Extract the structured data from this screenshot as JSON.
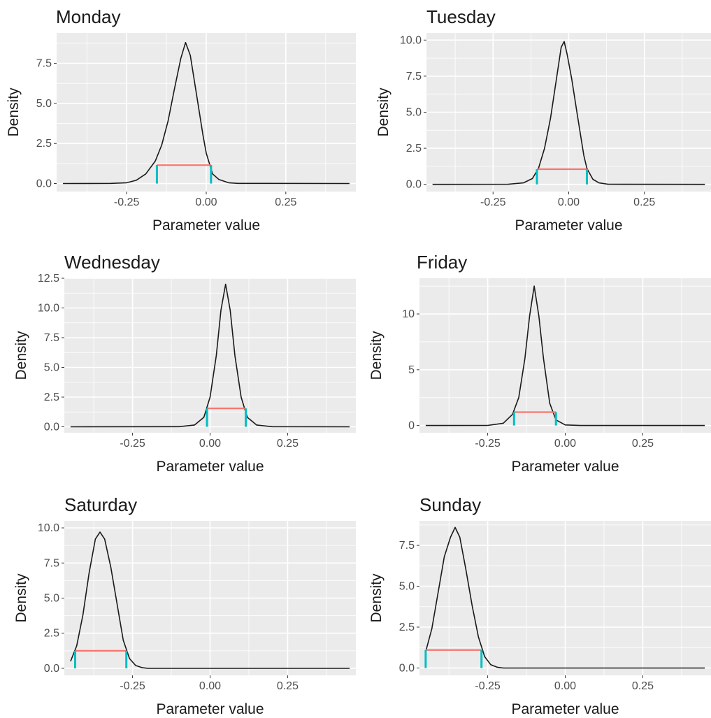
{
  "chart_data": [
    {
      "type": "line",
      "title": "Monday",
      "xlabel": "Parameter value",
      "ylabel": "Density",
      "xlim": [
        -0.47,
        0.47
      ],
      "ylim": [
        -0.5,
        9.4
      ],
      "x_ticks": [
        -0.25,
        0.0,
        0.25
      ],
      "x_tick_labels": [
        "-0.25",
        "0.00",
        "0.25"
      ],
      "y_ticks": [
        0.0,
        2.5,
        5.0,
        7.5
      ],
      "y_tick_labels": [
        "0.0",
        "2.5",
        "5.0",
        "7.5"
      ],
      "grid": true,
      "density": {
        "x": [
          -0.45,
          -0.3,
          -0.25,
          -0.22,
          -0.19,
          -0.16,
          -0.14,
          -0.12,
          -0.1,
          -0.08,
          -0.065,
          -0.05,
          -0.03,
          -0.01,
          0.0,
          0.02,
          0.04,
          0.07,
          0.1,
          0.45
        ],
        "y": [
          0,
          0.01,
          0.05,
          0.2,
          0.6,
          1.4,
          2.4,
          3.9,
          5.9,
          7.8,
          8.8,
          8.0,
          5.5,
          3.0,
          1.9,
          0.6,
          0.25,
          0.05,
          0.01,
          0
        ]
      },
      "interval": {
        "lower": -0.155,
        "upper": 0.015,
        "height": 1.15
      }
    },
    {
      "type": "line",
      "title": "Tuesday",
      "xlabel": "Parameter value",
      "ylabel": "Density",
      "xlim": [
        -0.47,
        0.47
      ],
      "ylim": [
        -0.5,
        10.5
      ],
      "x_ticks": [
        -0.25,
        0.0,
        0.25
      ],
      "x_tick_labels": [
        "-0.25",
        "0.00",
        "0.25"
      ],
      "y_ticks": [
        0.0,
        2.5,
        5.0,
        7.5,
        10.0
      ],
      "y_tick_labels": [
        "0.0",
        "2.5",
        "5.0",
        "7.5",
        "10.0"
      ],
      "grid": true,
      "density": {
        "x": [
          -0.45,
          -0.2,
          -0.15,
          -0.12,
          -0.1,
          -0.08,
          -0.06,
          -0.04,
          -0.025,
          -0.015,
          -0.005,
          0.01,
          0.03,
          0.05,
          0.06,
          0.08,
          0.1,
          0.13,
          0.45
        ],
        "y": [
          0,
          0.01,
          0.1,
          0.4,
          1.1,
          2.5,
          4.6,
          7.4,
          9.5,
          9.9,
          9.0,
          7.3,
          4.6,
          2.0,
          1.1,
          0.35,
          0.1,
          0.01,
          0
        ]
      },
      "interval": {
        "lower": -0.105,
        "upper": 0.06,
        "height": 1.05
      }
    },
    {
      "type": "line",
      "title": "Wednesday",
      "xlabel": "Parameter value",
      "ylabel": "Density",
      "xlim": [
        -0.47,
        0.47
      ],
      "ylim": [
        -0.5,
        12.5
      ],
      "x_ticks": [
        -0.25,
        0.0,
        0.25
      ],
      "x_tick_labels": [
        "-0.25",
        "0.00",
        "0.25"
      ],
      "y_ticks": [
        0.0,
        2.5,
        5.0,
        7.5,
        10.0,
        12.5
      ],
      "y_tick_labels": [
        "0.0",
        "2.5",
        "5.0",
        "7.5",
        "10.0",
        "12.5"
      ],
      "grid": true,
      "density": {
        "x": [
          -0.45,
          -0.1,
          -0.05,
          -0.02,
          0.0,
          0.02,
          0.035,
          0.05,
          0.065,
          0.08,
          0.1,
          0.12,
          0.15,
          0.2,
          0.45
        ],
        "y": [
          0,
          0.01,
          0.15,
          0.8,
          2.5,
          6.0,
          9.8,
          12.0,
          9.8,
          6.0,
          2.5,
          0.8,
          0.15,
          0.01,
          0
        ]
      },
      "interval": {
        "lower": -0.01,
        "upper": 0.115,
        "height": 1.55
      }
    },
    {
      "type": "line",
      "title": "Friday",
      "xlabel": "Parameter value",
      "ylabel": "Density",
      "xlim": [
        -0.47,
        0.47
      ],
      "ylim": [
        -0.65,
        13.2
      ],
      "x_ticks": [
        -0.25,
        0.0,
        0.25
      ],
      "x_tick_labels": [
        "-0.25",
        "0.00",
        "0.25"
      ],
      "y_ticks": [
        0,
        5,
        10
      ],
      "y_tick_labels": [
        "0",
        "5",
        "10"
      ],
      "grid": true,
      "density": {
        "x": [
          -0.45,
          -0.25,
          -0.2,
          -0.17,
          -0.15,
          -0.13,
          -0.115,
          -0.1,
          -0.085,
          -0.07,
          -0.05,
          -0.03,
          0.0,
          0.05,
          0.45
        ],
        "y": [
          0,
          0.01,
          0.2,
          1.0,
          2.5,
          6.0,
          9.8,
          12.5,
          9.8,
          6.0,
          2.0,
          0.5,
          0.05,
          0,
          0
        ]
      },
      "interval": {
        "lower": -0.165,
        "upper": -0.03,
        "height": 1.2
      }
    },
    {
      "type": "line",
      "title": "Saturday",
      "xlabel": "Parameter value",
      "ylabel": "Density",
      "xlim": [
        -0.47,
        0.47
      ],
      "ylim": [
        -0.5,
        10.5
      ],
      "x_ticks": [
        -0.25,
        0.0,
        0.25
      ],
      "x_tick_labels": [
        "-0.25",
        "0.00",
        "0.25"
      ],
      "y_ticks": [
        0.0,
        2.5,
        5.0,
        7.5,
        10.0
      ],
      "y_tick_labels": [
        "0.0",
        "2.5",
        "5.0",
        "7.5",
        "10.0"
      ],
      "grid": true,
      "density": {
        "x": [
          -0.45,
          -0.43,
          -0.41,
          -0.39,
          -0.37,
          -0.355,
          -0.34,
          -0.32,
          -0.3,
          -0.28,
          -0.26,
          -0.24,
          -0.22,
          -0.2,
          0.45
        ],
        "y": [
          0.5,
          1.6,
          3.8,
          6.8,
          9.2,
          9.7,
          9.2,
          7.2,
          4.6,
          2.0,
          0.7,
          0.2,
          0.05,
          0,
          0
        ]
      },
      "interval": {
        "lower": -0.435,
        "upper": -0.27,
        "height": 1.25
      }
    },
    {
      "type": "line",
      "title": "Sunday",
      "xlabel": "Parameter value",
      "ylabel": "Density",
      "xlim": [
        -0.47,
        0.47
      ],
      "ylim": [
        -0.45,
        9.0
      ],
      "x_ticks": [
        -0.25,
        0.0,
        0.25
      ],
      "x_tick_labels": [
        "-0.25",
        "0.00",
        "0.25"
      ],
      "y_ticks": [
        0.0,
        2.5,
        5.0,
        7.5
      ],
      "y_tick_labels": [
        "0.0",
        "2.5",
        "5.0",
        "7.5"
      ],
      "grid": true,
      "density": {
        "x": [
          -0.45,
          -0.43,
          -0.41,
          -0.39,
          -0.37,
          -0.355,
          -0.34,
          -0.32,
          -0.3,
          -0.28,
          -0.26,
          -0.24,
          -0.22,
          -0.2,
          0.45
        ],
        "y": [
          1.0,
          2.4,
          4.6,
          6.8,
          8.0,
          8.6,
          8.0,
          6.0,
          3.8,
          1.9,
          0.7,
          0.2,
          0.05,
          0,
          0
        ]
      },
      "interval": {
        "lower": -0.45,
        "upper": -0.27,
        "height": 1.1
      }
    }
  ],
  "colors": {
    "panel_background": "#ebebeb",
    "grid": "#ffffff",
    "density_line": "#1a1a1a",
    "interval_line": "#f8766d",
    "interval_ticks": "#00bfc4",
    "tick_text": "#4d4d4d"
  }
}
